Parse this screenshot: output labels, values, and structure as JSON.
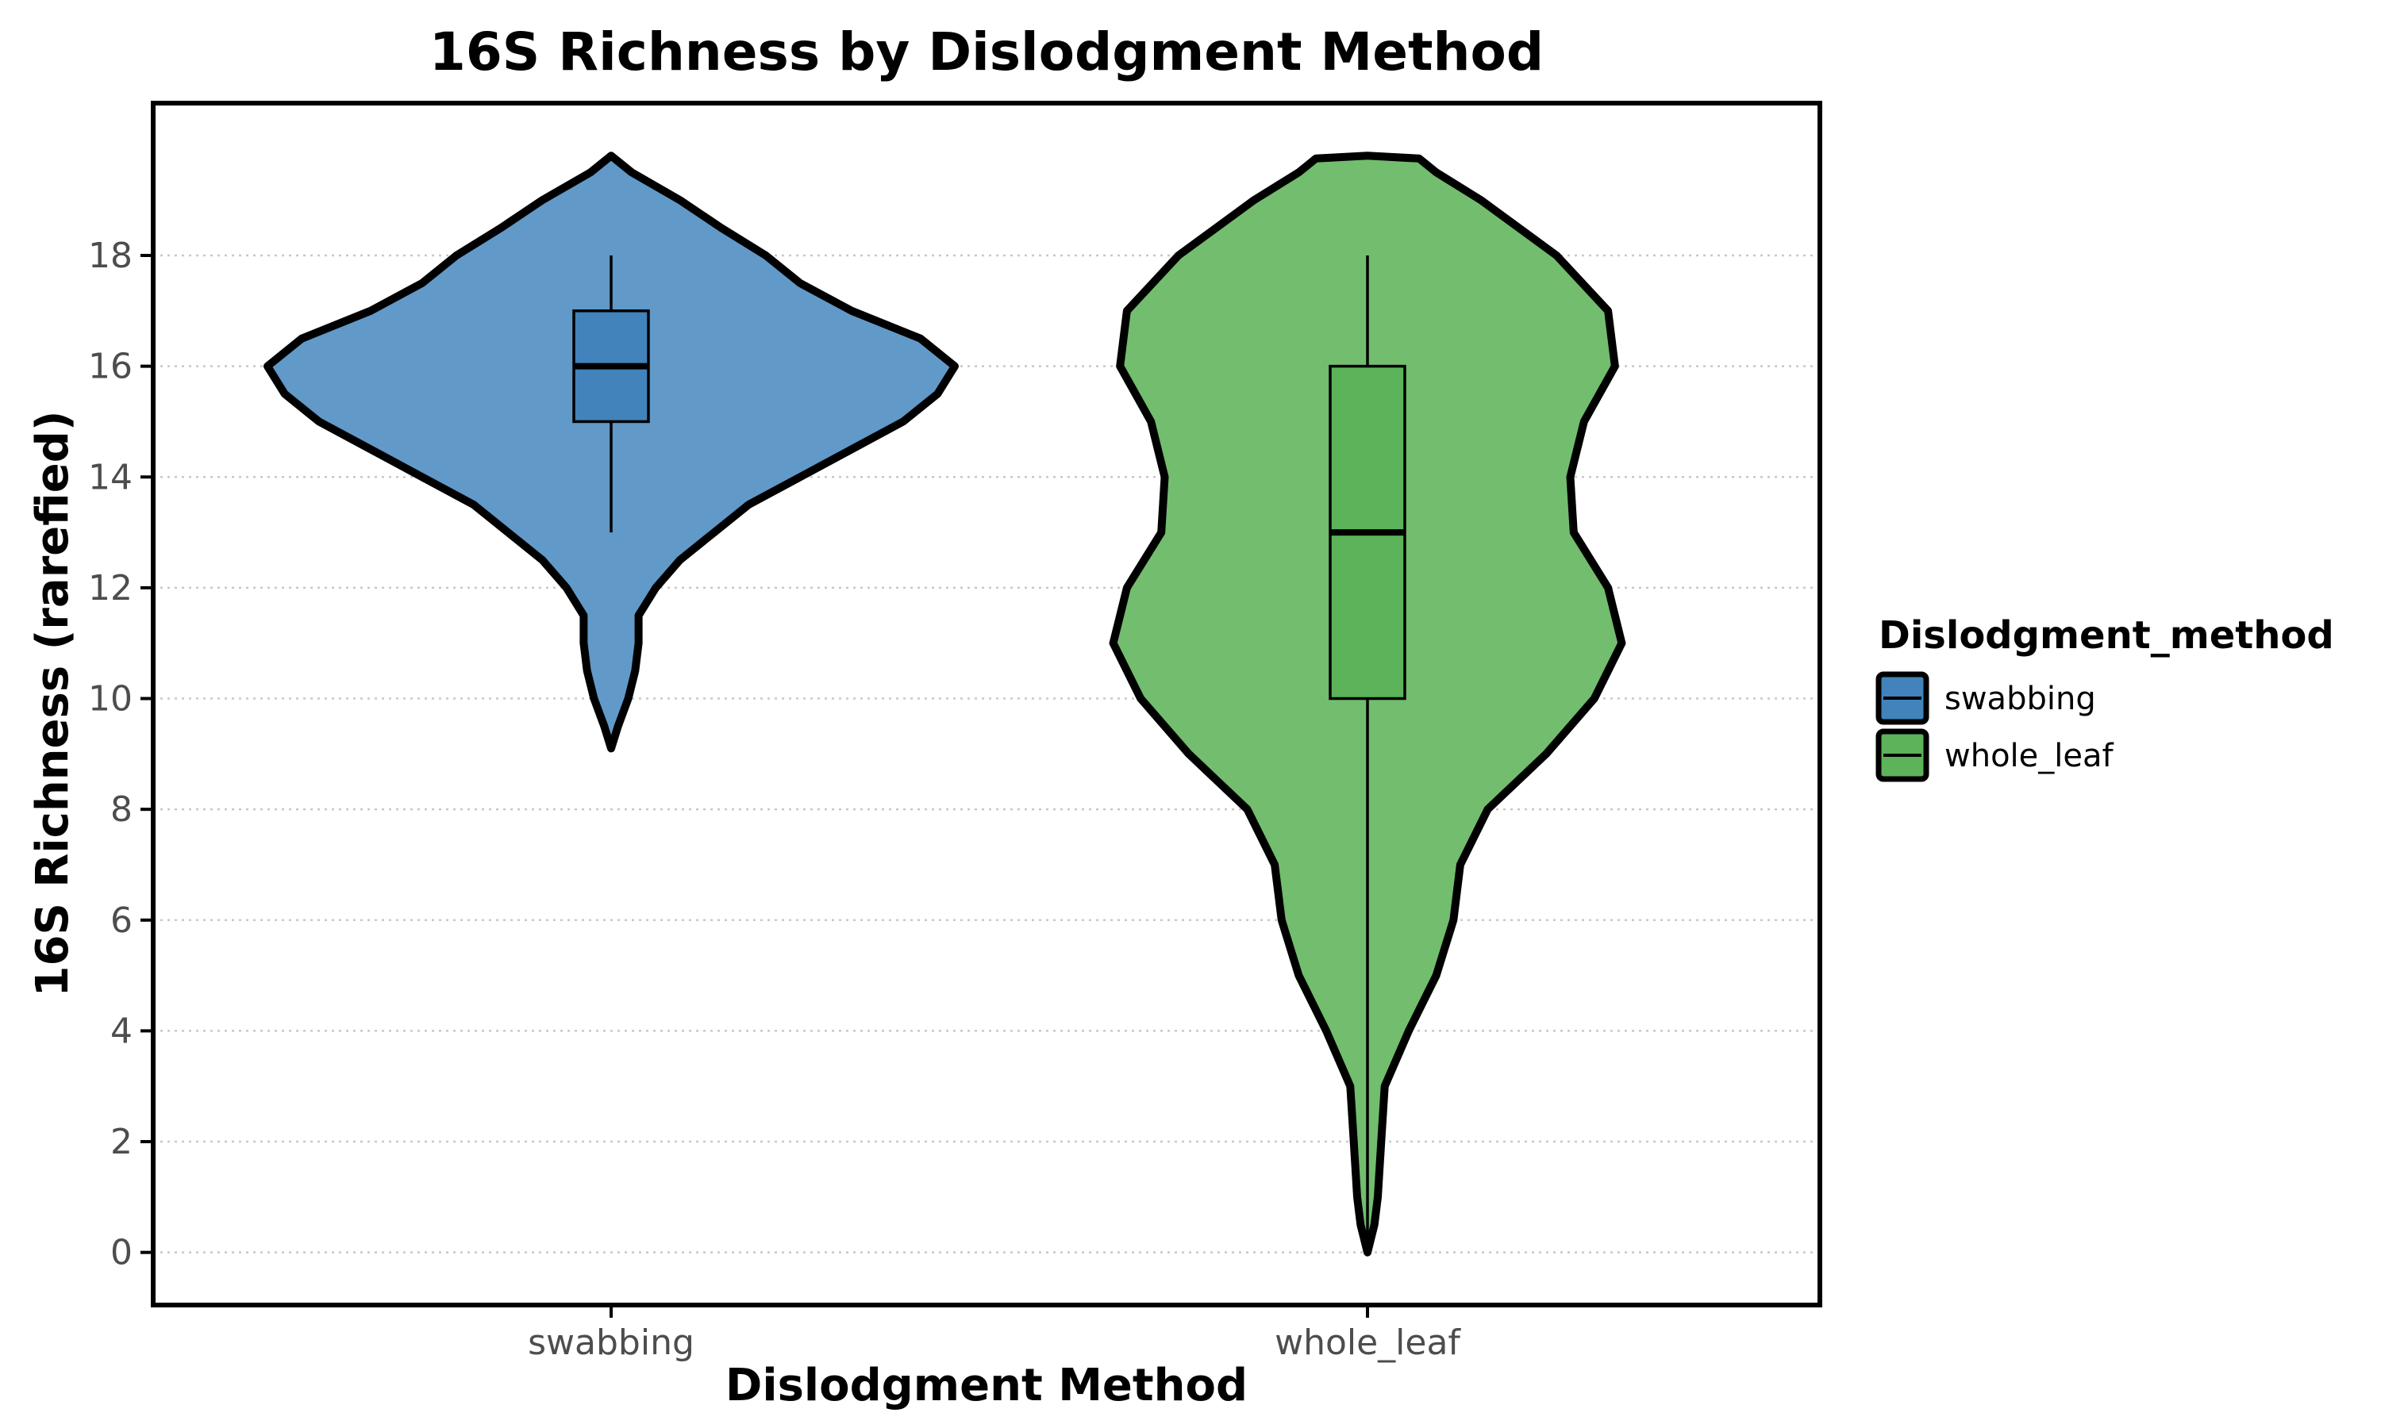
{
  "chart_data": {
    "type": "violin",
    "title": "16S Richness by Dislodgment Method",
    "xlabel": "Dislodgment Method",
    "ylabel": "16S Richness (rarefied)",
    "ylim": [
      -0.95,
      20.75
    ],
    "yticks": [
      0,
      2,
      4,
      6,
      8,
      10,
      12,
      14,
      16,
      18
    ],
    "grid": "horizontal dotted",
    "legend": {
      "title": "Dislodgment_method",
      "placement": "right",
      "entries": [
        "swabbing",
        "whole_leaf"
      ]
    },
    "categories": [
      "swabbing",
      "whole_leaf"
    ],
    "series": [
      {
        "name": "swabbing",
        "violin_color": "#6199c8",
        "box_color": "#4183ba",
        "box": {
          "min": 13,
          "q1": 15,
          "median": 16,
          "q3": 17,
          "max": 18
        },
        "density_profile": [
          [
            9.1,
            0.0
          ],
          [
            9.5,
            0.02
          ],
          [
            10.0,
            0.05
          ],
          [
            10.5,
            0.07
          ],
          [
            11.0,
            0.08
          ],
          [
            11.5,
            0.08
          ],
          [
            12.0,
            0.13
          ],
          [
            12.5,
            0.2
          ],
          [
            13.0,
            0.3
          ],
          [
            13.5,
            0.4
          ],
          [
            14.0,
            0.55
          ],
          [
            14.5,
            0.7
          ],
          [
            15.0,
            0.85
          ],
          [
            15.5,
            0.95
          ],
          [
            16.0,
            1.0
          ],
          [
            16.5,
            0.9
          ],
          [
            17.0,
            0.7
          ],
          [
            17.5,
            0.55
          ],
          [
            18.0,
            0.45
          ],
          [
            18.5,
            0.32
          ],
          [
            19.0,
            0.2
          ],
          [
            19.5,
            0.06
          ],
          [
            19.8,
            0.0
          ]
        ]
      },
      {
        "name": "whole_leaf",
        "violin_color": "#72bd6e",
        "box_color": "#5cb359",
        "box": {
          "min": 0,
          "q1": 10,
          "median": 13,
          "q3": 16,
          "max": 18
        },
        "density_profile": [
          [
            0.0,
            0.0
          ],
          [
            0.5,
            0.02
          ],
          [
            1.0,
            0.03
          ],
          [
            2.0,
            0.04
          ],
          [
            3.0,
            0.05
          ],
          [
            4.0,
            0.12
          ],
          [
            5.0,
            0.2
          ],
          [
            6.0,
            0.25
          ],
          [
            7.0,
            0.27
          ],
          [
            8.0,
            0.35
          ],
          [
            9.0,
            0.52
          ],
          [
            10.0,
            0.66
          ],
          [
            11.0,
            0.74
          ],
          [
            12.0,
            0.7
          ],
          [
            13.0,
            0.6
          ],
          [
            14.0,
            0.59
          ],
          [
            15.0,
            0.63
          ],
          [
            16.0,
            0.72
          ],
          [
            17.0,
            0.7
          ],
          [
            18.0,
            0.55
          ],
          [
            19.0,
            0.33
          ],
          [
            19.5,
            0.2
          ],
          [
            19.75,
            0.15
          ],
          [
            19.8,
            0.0
          ]
        ]
      }
    ]
  }
}
